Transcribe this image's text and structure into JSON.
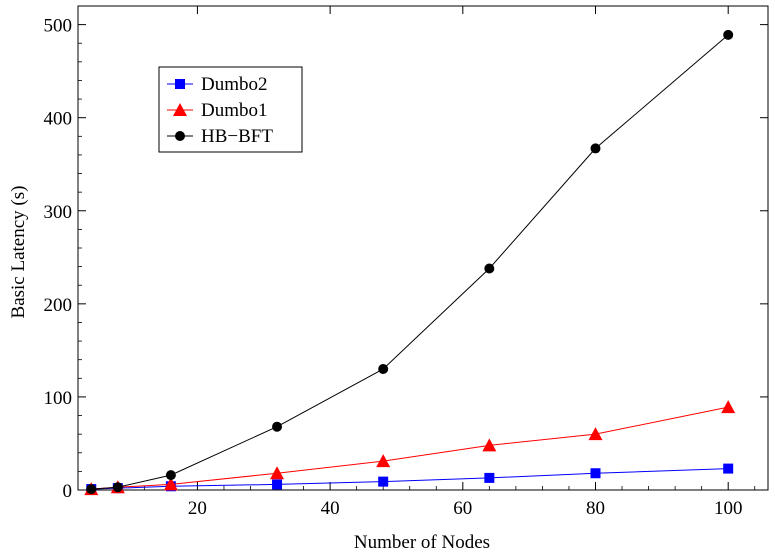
{
  "chart_data": {
    "type": "line",
    "title": "",
    "xlabel": "Number of Nodes",
    "ylabel": "Basic Latency (s)",
    "xlim": [
      2,
      106
    ],
    "ylim": [
      0,
      520
    ],
    "xticks": [
      20,
      40,
      60,
      80,
      100
    ],
    "yticks": [
      0,
      100,
      200,
      300,
      400,
      500
    ],
    "grid": false,
    "legend_position": "top-left",
    "series": [
      {
        "name": "Dumbo2",
        "color": "#0000ff",
        "marker": "square",
        "x": [
          4,
          8,
          16,
          32,
          48,
          64,
          80,
          100
        ],
        "y": [
          1,
          2,
          4,
          6,
          9,
          13,
          18,
          23
        ]
      },
      {
        "name": "Dumbo1",
        "color": "#ff0000",
        "marker": "triangle",
        "x": [
          4,
          8,
          16,
          32,
          48,
          64,
          80,
          100
        ],
        "y": [
          1,
          3,
          6,
          18,
          31,
          48,
          60,
          89
        ]
      },
      {
        "name": "HB−BFT",
        "color": "#000000",
        "marker": "circle",
        "x": [
          4,
          8,
          16,
          32,
          48,
          64,
          80,
          100
        ],
        "y": [
          1,
          3,
          16,
          68,
          130,
          238,
          367,
          489
        ]
      }
    ]
  }
}
